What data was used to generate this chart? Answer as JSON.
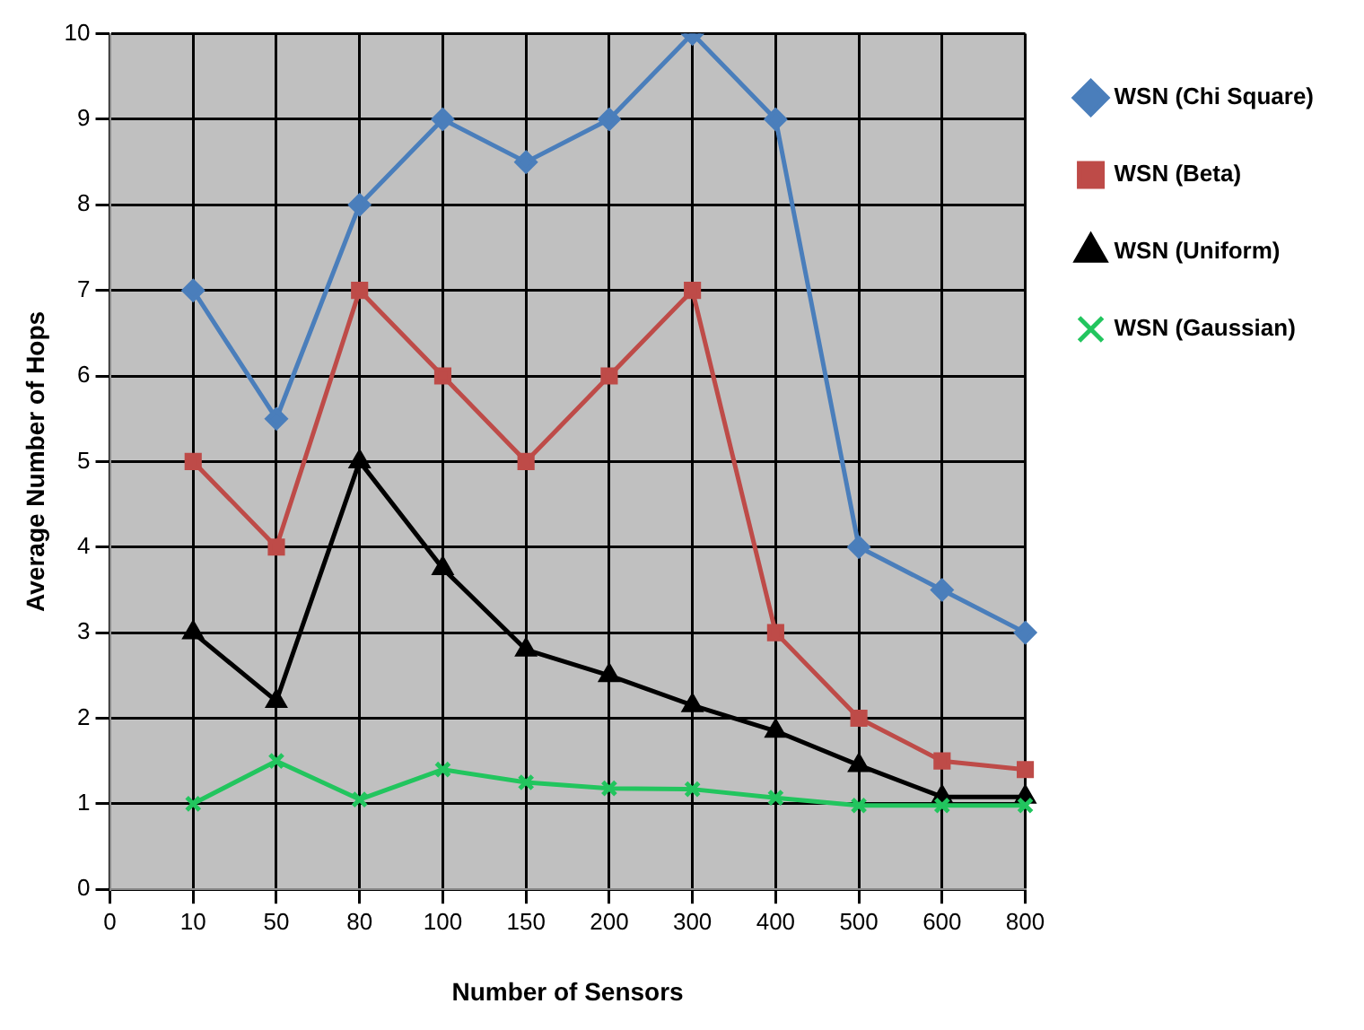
{
  "chart_data": {
    "type": "line",
    "xlabel": "Number of Sensors",
    "ylabel": "Average Number of Hops",
    "categories": [
      "0",
      "10",
      "50",
      "80",
      "100",
      "150",
      "200",
      "300",
      "400",
      "500",
      "600",
      "800"
    ],
    "series": [
      {
        "name": "WSN (Chi Square)",
        "color": "#4a7ebb",
        "marker": "diamond",
        "values": [
          null,
          7,
          5.5,
          8,
          9,
          8.5,
          9,
          10,
          9,
          4,
          3.5,
          3
        ]
      },
      {
        "name": "WSN (Beta)",
        "color": "#be4b48",
        "marker": "square",
        "values": [
          null,
          5,
          4,
          7,
          6,
          5,
          6,
          7,
          3,
          2,
          1.5,
          1.4
        ]
      },
      {
        "name": "WSN (Uniform)",
        "color": "#000000",
        "marker": "triangle",
        "values": [
          null,
          3,
          2.2,
          5,
          3.75,
          2.8,
          2.5,
          2.15,
          1.85,
          1.45,
          1.08,
          1.08
        ]
      },
      {
        "name": "WSN (Gaussian)",
        "color": "#22c55e",
        "marker": "cross",
        "values": [
          null,
          1,
          1.5,
          1.05,
          1.4,
          1.25,
          1.18,
          1.17,
          1.07,
          0.98,
          0.98,
          0.98
        ]
      }
    ],
    "ylim": [
      0,
      10
    ],
    "yticks": [
      0,
      1,
      2,
      3,
      4,
      5,
      6,
      7,
      8,
      9,
      10
    ],
    "grid": true,
    "legend": "right",
    "line_style": "solid"
  }
}
